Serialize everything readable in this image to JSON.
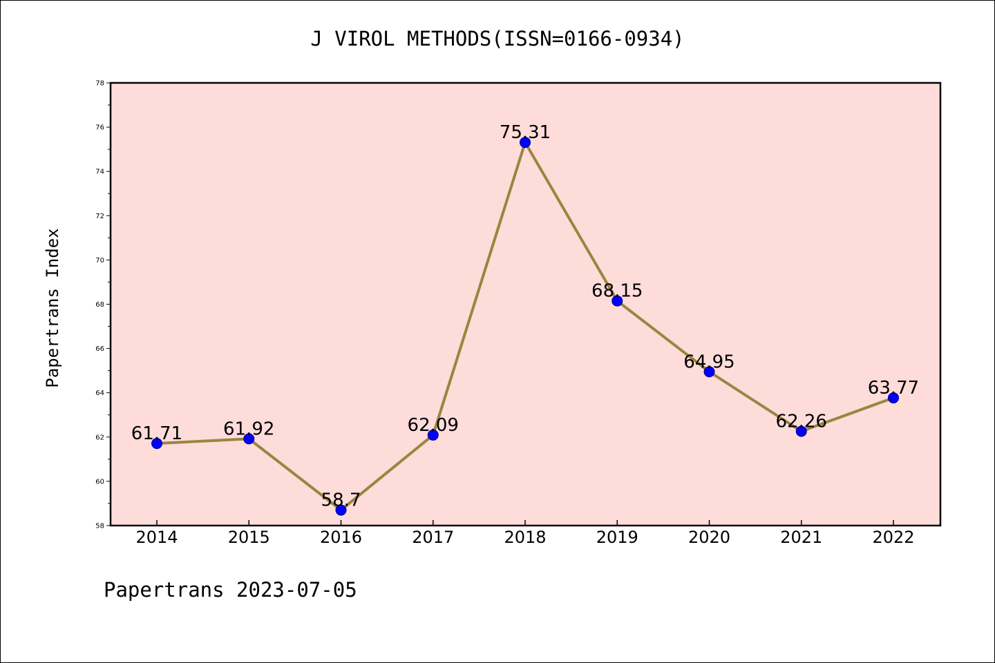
{
  "chart_data": {
    "type": "line",
    "title": "J VIROL METHODS(ISSN=0166-0934)",
    "xlabel": "",
    "ylabel": "Papertrans Index",
    "categories": [
      "2014",
      "2015",
      "2016",
      "2017",
      "2018",
      "2019",
      "2020",
      "2021",
      "2022"
    ],
    "series": [
      {
        "values": [
          61.71,
          61.92,
          58.7,
          62.09,
          75.31,
          68.15,
          64.95,
          62.26,
          63.77
        ],
        "data_labels": [
          "61.71",
          "61.92",
          "58.7",
          "62.09",
          "75.31",
          "68.15",
          "64.95",
          "62.26",
          "63.77"
        ]
      }
    ],
    "ylim": [
      58,
      78
    ],
    "y_major_ticks": [
      58,
      60,
      62,
      64,
      66,
      68,
      70,
      72,
      74,
      76,
      78
    ],
    "y_tick_labels": [
      "58",
      "60",
      "62",
      "64",
      "66",
      "68",
      "70",
      "72",
      "74",
      "76",
      "78"
    ],
    "grid": false,
    "legend": "none",
    "colors": {
      "plot_background": "#fddcda",
      "line": "#9b8540",
      "marker_fill": "#0000ff",
      "marker_edge": "#000080",
      "axes": "#000000"
    }
  },
  "footer": {
    "text": "Papertrans 2023-07-05"
  }
}
